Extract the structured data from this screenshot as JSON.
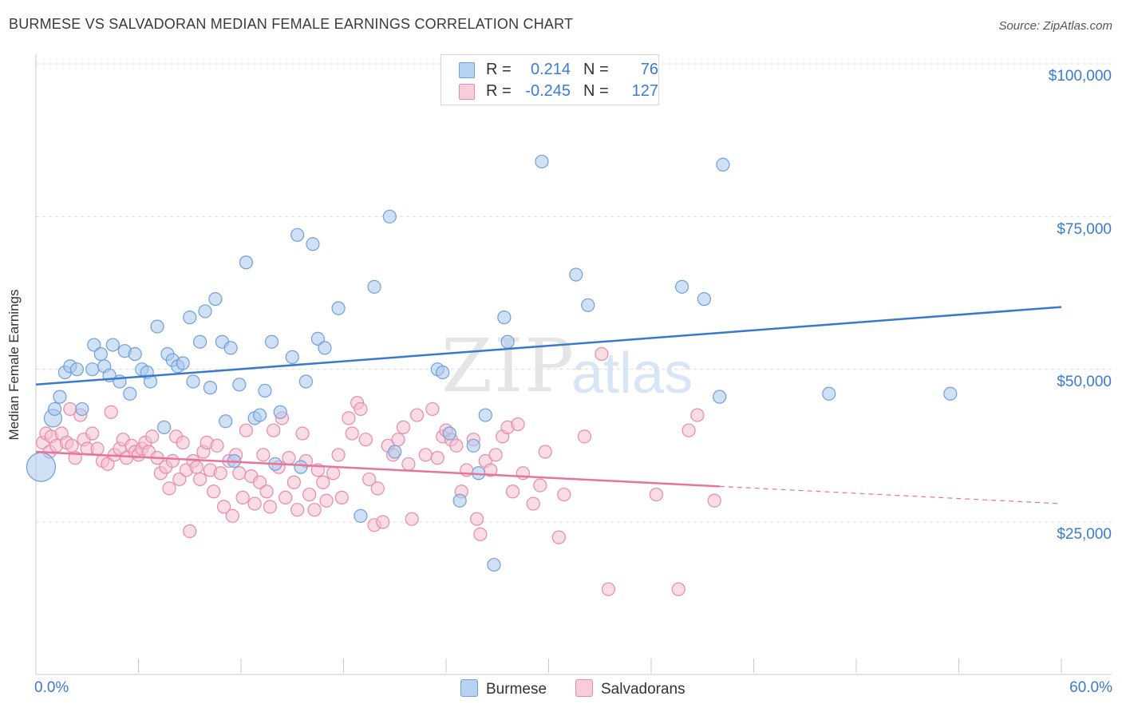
{
  "title": "BURMESE VS SALVADORAN MEDIAN FEMALE EARNINGS CORRELATION CHART",
  "source": "Source: ZipAtlas.com",
  "watermark": {
    "zip": "ZIP",
    "atlas": "atlas"
  },
  "legend": {
    "r_label": "R =",
    "n_label": "N =",
    "rows": [
      {
        "r": "0.214",
        "n": "76"
      },
      {
        "r": "-0.245",
        "n": "127"
      }
    ]
  },
  "colors": {
    "burmese_fill": "#a9c8ef",
    "burmese_stroke": "#6f9fdc",
    "burmese_line": "#3a78d0",
    "salvadoran_fill": "#f6bfd0",
    "salvadoran_stroke": "#e88aa9",
    "salvadoran_line": "#e8739b",
    "axis_text": "#3a7bd5",
    "grid": "#dddddd"
  },
  "chart_data": {
    "type": "scatter",
    "title": "BURMESE VS SALVADORAN MEDIAN FEMALE EARNINGS CORRELATION CHART",
    "xlabel": "",
    "ylabel": "Median Female Earnings",
    "x_tick_labels": [
      "0.0%",
      "60.0%"
    ],
    "y_tick_labels": [
      "$25,000",
      "$50,000",
      "$75,000",
      "$100,000"
    ],
    "y_ticks": [
      25000,
      50000,
      75000,
      100000
    ],
    "xlim": [
      0,
      60
    ],
    "ylim": [
      2500,
      102500
    ],
    "grid": true,
    "legend_position": "bottom",
    "series": [
      {
        "name": "Burmese",
        "trend": {
          "x": [
            0,
            60
          ],
          "y": [
            47500,
            60200
          ],
          "dashed_from": null
        },
        "points": [
          [
            0.3,
            34000,
            3
          ],
          [
            1.0,
            42000,
            2
          ],
          [
            1.1,
            43500,
            1
          ],
          [
            1.4,
            45500,
            1
          ],
          [
            1.7,
            49500,
            1
          ],
          [
            2.0,
            50500,
            1
          ],
          [
            2.4,
            50000,
            1
          ],
          [
            2.7,
            43500,
            1
          ],
          [
            3.3,
            50000,
            1
          ],
          [
            3.4,
            54000,
            1
          ],
          [
            3.8,
            52500,
            1
          ],
          [
            4.0,
            50500,
            1
          ],
          [
            4.3,
            49000,
            1
          ],
          [
            4.5,
            54000,
            1
          ],
          [
            4.9,
            48000,
            1
          ],
          [
            5.2,
            53000,
            1
          ],
          [
            5.5,
            46000,
            1
          ],
          [
            5.8,
            52500,
            1
          ],
          [
            6.2,
            50000,
            1
          ],
          [
            6.5,
            49500,
            1
          ],
          [
            6.7,
            48000,
            1
          ],
          [
            7.1,
            57000,
            1
          ],
          [
            7.5,
            40500,
            1
          ],
          [
            7.7,
            52500,
            1
          ],
          [
            8.0,
            51500,
            1
          ],
          [
            8.3,
            50500,
            1
          ],
          [
            8.6,
            51000,
            1
          ],
          [
            9.0,
            58500,
            1
          ],
          [
            9.2,
            48000,
            1
          ],
          [
            9.6,
            54500,
            1
          ],
          [
            9.9,
            59500,
            1
          ],
          [
            10.2,
            47000,
            1
          ],
          [
            10.5,
            61500,
            1
          ],
          [
            10.9,
            54500,
            1
          ],
          [
            11.1,
            41500,
            1
          ],
          [
            11.4,
            53500,
            1
          ],
          [
            11.6,
            35000,
            1
          ],
          [
            11.9,
            47500,
            1
          ],
          [
            12.3,
            67500,
            1
          ],
          [
            12.8,
            42000,
            1
          ],
          [
            13.1,
            42500,
            1
          ],
          [
            13.4,
            46500,
            1
          ],
          [
            13.8,
            54500,
            1
          ],
          [
            14.0,
            34500,
            1
          ],
          [
            14.3,
            43000,
            1
          ],
          [
            15.0,
            52000,
            1
          ],
          [
            15.3,
            72000,
            1
          ],
          [
            15.5,
            34000,
            1
          ],
          [
            15.8,
            48000,
            1
          ],
          [
            16.2,
            70500,
            1
          ],
          [
            16.5,
            55000,
            1
          ],
          [
            16.9,
            53500,
            1
          ],
          [
            17.7,
            60000,
            1
          ],
          [
            19.0,
            26000,
            1
          ],
          [
            19.8,
            63500,
            1
          ],
          [
            20.7,
            75000,
            1
          ],
          [
            21.0,
            36500,
            1
          ],
          [
            23.5,
            50000,
            1
          ],
          [
            23.8,
            49500,
            1
          ],
          [
            24.2,
            39500,
            1
          ],
          [
            24.8,
            28500,
            1
          ],
          [
            25.6,
            37500,
            1
          ],
          [
            25.9,
            33000,
            1
          ],
          [
            26.3,
            42500,
            1
          ],
          [
            26.8,
            18000,
            1
          ],
          [
            27.4,
            58500,
            1
          ],
          [
            27.6,
            54500,
            1
          ],
          [
            29.6,
            84000,
            1
          ],
          [
            31.6,
            65500,
            1
          ],
          [
            32.3,
            60500,
            1
          ],
          [
            37.8,
            63500,
            1
          ],
          [
            39.1,
            61500,
            1
          ],
          [
            40.0,
            45500,
            1
          ],
          [
            40.2,
            83500,
            1
          ],
          [
            46.4,
            46000,
            1
          ],
          [
            53.5,
            46000,
            1
          ]
        ]
      },
      {
        "name": "Salvadorans",
        "trend": {
          "x": [
            0,
            60
          ],
          "y": [
            36500,
            28000
          ],
          "dashed_from": 40
        },
        "points": [
          [
            0.4,
            38000,
            1
          ],
          [
            0.6,
            39500,
            1
          ],
          [
            0.8,
            36500,
            1
          ],
          [
            0.9,
            39000,
            1
          ],
          [
            1.2,
            37500,
            1
          ],
          [
            1.5,
            39500,
            1
          ],
          [
            1.8,
            38000,
            1
          ],
          [
            2.0,
            43500,
            1
          ],
          [
            2.1,
            37500,
            1
          ],
          [
            2.3,
            35500,
            1
          ],
          [
            2.6,
            42500,
            1
          ],
          [
            2.8,
            38500,
            1
          ],
          [
            3.0,
            37000,
            1
          ],
          [
            3.3,
            39500,
            1
          ],
          [
            3.6,
            37000,
            1
          ],
          [
            3.9,
            35000,
            1
          ],
          [
            4.2,
            34500,
            1
          ],
          [
            4.4,
            43000,
            1
          ],
          [
            4.6,
            36000,
            1
          ],
          [
            4.9,
            37000,
            1
          ],
          [
            5.1,
            38500,
            1
          ],
          [
            5.3,
            35500,
            1
          ],
          [
            5.6,
            37500,
            1
          ],
          [
            5.8,
            36500,
            1
          ],
          [
            6.0,
            36000,
            1
          ],
          [
            6.2,
            37000,
            1
          ],
          [
            6.4,
            38000,
            1
          ],
          [
            6.6,
            36500,
            1
          ],
          [
            6.8,
            39000,
            1
          ],
          [
            7.1,
            35500,
            1
          ],
          [
            7.3,
            33000,
            1
          ],
          [
            7.6,
            34000,
            1
          ],
          [
            7.8,
            30500,
            1
          ],
          [
            8.0,
            35000,
            1
          ],
          [
            8.2,
            39000,
            1
          ],
          [
            8.4,
            32000,
            1
          ],
          [
            8.6,
            38000,
            1
          ],
          [
            8.8,
            33500,
            1
          ],
          [
            9.0,
            23500,
            1
          ],
          [
            9.2,
            35000,
            1
          ],
          [
            9.4,
            34000,
            1
          ],
          [
            9.6,
            32000,
            1
          ],
          [
            9.8,
            36500,
            1
          ],
          [
            10.0,
            38000,
            1
          ],
          [
            10.2,
            33500,
            1
          ],
          [
            10.4,
            30000,
            1
          ],
          [
            10.6,
            37500,
            1
          ],
          [
            10.8,
            33000,
            1
          ],
          [
            11.0,
            27500,
            1
          ],
          [
            11.3,
            35000,
            1
          ],
          [
            11.5,
            26000,
            1
          ],
          [
            11.7,
            36000,
            1
          ],
          [
            11.9,
            33000,
            1
          ],
          [
            12.1,
            29000,
            1
          ],
          [
            12.3,
            40000,
            1
          ],
          [
            12.6,
            32500,
            1
          ],
          [
            12.8,
            28000,
            1
          ],
          [
            13.1,
            31500,
            1
          ],
          [
            13.3,
            36000,
            1
          ],
          [
            13.5,
            30000,
            1
          ],
          [
            13.7,
            27500,
            1
          ],
          [
            13.9,
            40000,
            1
          ],
          [
            14.2,
            34000,
            1
          ],
          [
            14.4,
            42000,
            1
          ],
          [
            14.6,
            29000,
            1
          ],
          [
            14.8,
            35500,
            1
          ],
          [
            15.1,
            31500,
            1
          ],
          [
            15.3,
            27000,
            1
          ],
          [
            15.6,
            39500,
            1
          ],
          [
            15.8,
            35000,
            1
          ],
          [
            16.0,
            29500,
            1
          ],
          [
            16.3,
            27000,
            1
          ],
          [
            16.5,
            33500,
            1
          ],
          [
            16.8,
            31500,
            1
          ],
          [
            17.0,
            28500,
            1
          ],
          [
            17.4,
            33000,
            1
          ],
          [
            17.7,
            36000,
            1
          ],
          [
            17.9,
            29000,
            1
          ],
          [
            18.3,
            42000,
            1
          ],
          [
            18.5,
            39500,
            1
          ],
          [
            18.8,
            44500,
            1
          ],
          [
            19.0,
            43500,
            1
          ],
          [
            19.3,
            38500,
            1
          ],
          [
            19.5,
            32000,
            1
          ],
          [
            19.8,
            24500,
            1
          ],
          [
            20.0,
            30500,
            1
          ],
          [
            20.3,
            25000,
            1
          ],
          [
            20.6,
            37500,
            1
          ],
          [
            20.9,
            36000,
            1
          ],
          [
            21.2,
            38500,
            1
          ],
          [
            21.5,
            40500,
            1
          ],
          [
            21.8,
            34500,
            1
          ],
          [
            22.0,
            25500,
            1
          ],
          [
            22.3,
            42500,
            1
          ],
          [
            22.8,
            36000,
            1
          ],
          [
            23.2,
            43500,
            1
          ],
          [
            23.5,
            35500,
            1
          ],
          [
            23.8,
            39000,
            1
          ],
          [
            24.0,
            40000,
            1
          ],
          [
            24.3,
            38500,
            1
          ],
          [
            24.6,
            37500,
            1
          ],
          [
            24.9,
            30000,
            1
          ],
          [
            25.2,
            33500,
            1
          ],
          [
            25.6,
            38500,
            1
          ],
          [
            25.8,
            25500,
            1
          ],
          [
            26.0,
            23000,
            1
          ],
          [
            26.3,
            35000,
            1
          ],
          [
            26.6,
            33500,
            1
          ],
          [
            26.9,
            36000,
            1
          ],
          [
            27.3,
            39000,
            1
          ],
          [
            27.6,
            40500,
            1
          ],
          [
            27.9,
            30000,
            1
          ],
          [
            28.2,
            41000,
            1
          ],
          [
            28.5,
            33000,
            1
          ],
          [
            29.1,
            28000,
            1
          ],
          [
            29.5,
            31000,
            1
          ],
          [
            29.8,
            36500,
            1
          ],
          [
            30.6,
            22500,
            1
          ],
          [
            30.9,
            29500,
            1
          ],
          [
            32.1,
            39000,
            1
          ],
          [
            33.1,
            52500,
            1
          ],
          [
            33.5,
            14000,
            1
          ],
          [
            36.3,
            29500,
            1
          ],
          [
            37.6,
            14000,
            1
          ],
          [
            38.2,
            40000,
            1
          ],
          [
            38.7,
            42500,
            1
          ],
          [
            39.7,
            28500,
            1
          ]
        ]
      }
    ]
  }
}
